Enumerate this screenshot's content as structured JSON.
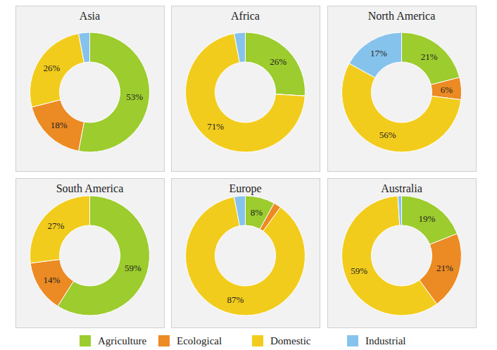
{
  "chart_data": [
    {
      "type": "pie",
      "title": "Asia",
      "categories": [
        "Agriculture",
        "Ecological",
        "Domestic",
        "Industrial"
      ],
      "values": [
        53,
        18,
        26,
        3
      ],
      "value_labels": [
        "53%",
        "18%",
        "26%",
        null
      ],
      "colors": [
        "#9ccc2e",
        "#ec8a23",
        "#f2cc1c",
        "#86c3ec"
      ],
      "data_labels": true,
      "legend": "bottom"
    },
    {
      "type": "pie",
      "title": "Africa",
      "categories": [
        "Agriculture",
        "Ecological",
        "Domestic",
        "Industrial"
      ],
      "values": [
        26,
        0,
        71,
        3
      ],
      "value_labels": [
        "26%",
        null,
        "71%",
        null
      ],
      "colors": [
        "#9ccc2e",
        "#ec8a23",
        "#f2cc1c",
        "#86c3ec"
      ],
      "data_labels": true
    },
    {
      "type": "pie",
      "title": "North America",
      "categories": [
        "Agriculture",
        "Ecological",
        "Domestic",
        "Industrial"
      ],
      "values": [
        21,
        6,
        56,
        17
      ],
      "value_labels": [
        "21%",
        "6%",
        "56%",
        "17%"
      ],
      "colors": [
        "#9ccc2e",
        "#ec8a23",
        "#f2cc1c",
        "#86c3ec"
      ],
      "data_labels": true
    },
    {
      "type": "pie",
      "title": "South America",
      "categories": [
        "Agriculture",
        "Ecological",
        "Domestic",
        "Industrial"
      ],
      "values": [
        59,
        14,
        27,
        0
      ],
      "value_labels": [
        "59%",
        "14%",
        "27%",
        null
      ],
      "colors": [
        "#9ccc2e",
        "#ec8a23",
        "#f2cc1c",
        "#86c3ec"
      ],
      "data_labels": true
    },
    {
      "type": "pie",
      "title": "Europe",
      "categories": [
        "Agriculture",
        "Ecological",
        "Domestic",
        "Industrial"
      ],
      "values": [
        8,
        2,
        87,
        3
      ],
      "value_labels": [
        "8%",
        null,
        "87%",
        null
      ],
      "colors": [
        "#9ccc2e",
        "#ec8a23",
        "#f2cc1c",
        "#86c3ec"
      ],
      "data_labels": true
    },
    {
      "type": "pie",
      "title": "Australia",
      "categories": [
        "Agriculture",
        "Ecological",
        "Domestic",
        "Industrial"
      ],
      "values": [
        19,
        21,
        59,
        1
      ],
      "value_labels": [
        "19%",
        "21%",
        "59%",
        null
      ],
      "colors": [
        "#9ccc2e",
        "#ec8a23",
        "#f2cc1c",
        "#86c3ec"
      ],
      "data_labels": true
    }
  ]
}
